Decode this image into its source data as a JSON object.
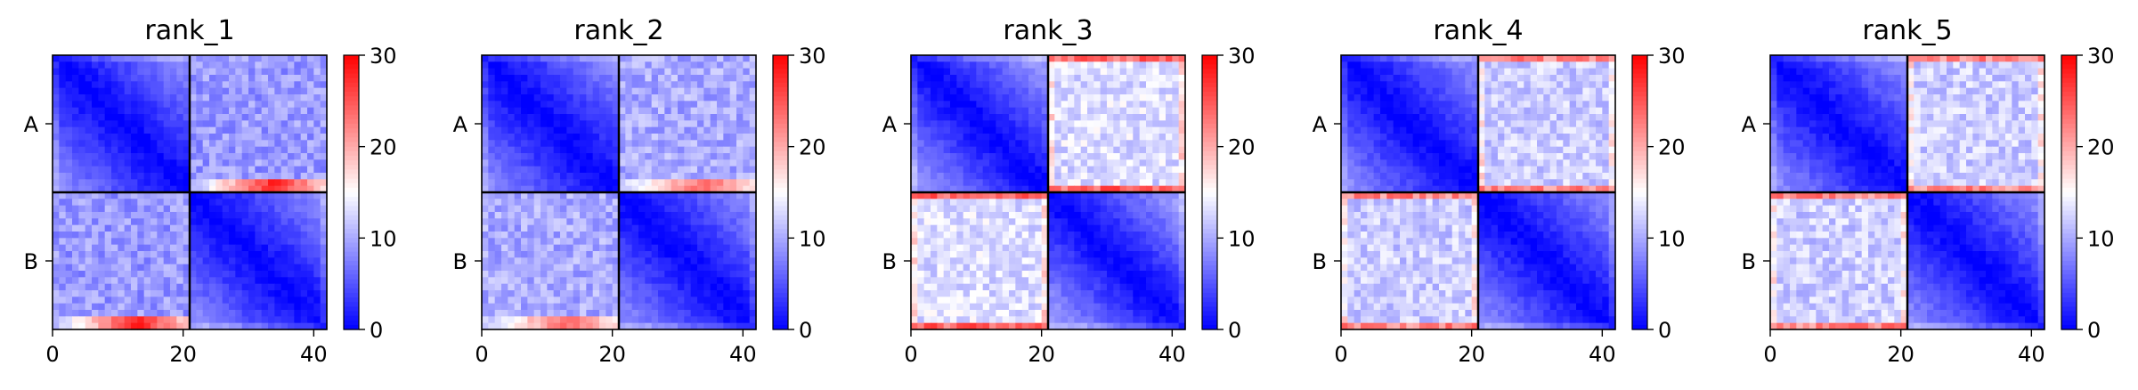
{
  "chart_data": [
    {
      "type": "heatmap",
      "title": "rank_1",
      "xticks": [
        0,
        20,
        40
      ],
      "yticklabels": [
        "A",
        "B"
      ],
      "xlim": [
        0,
        42
      ],
      "chain_boundary": 21,
      "colorbar": {
        "ticks": [
          0,
          10,
          20,
          30
        ],
        "range": [
          0,
          30
        ],
        "colormap": "bwr"
      },
      "offdiag_pattern": "edge-high",
      "approx_values": {
        "diagonal": 0,
        "intra_chain_far": 8,
        "inter_chain_typical": 9,
        "hot_edges": 28
      }
    },
    {
      "type": "heatmap",
      "title": "rank_2",
      "xticks": [
        0,
        20,
        40
      ],
      "yticklabels": [
        "A",
        "B"
      ],
      "xlim": [
        0,
        42
      ],
      "chain_boundary": 21,
      "colorbar": {
        "ticks": [
          0,
          10,
          20,
          30
        ],
        "range": [
          0,
          30
        ],
        "colormap": "bwr"
      },
      "offdiag_pattern": "edge-high",
      "approx_values": {
        "diagonal": 0,
        "intra_chain_far": 8,
        "inter_chain_typical": 10,
        "hot_edges": 24
      }
    },
    {
      "type": "heatmap",
      "title": "rank_3",
      "xticks": [
        0,
        20,
        40
      ],
      "yticklabels": [
        "A",
        "B"
      ],
      "xlim": [
        0,
        42
      ],
      "chain_boundary": 21,
      "colorbar": {
        "ticks": [
          0,
          10,
          20,
          30
        ],
        "range": [
          0,
          30
        ],
        "colormap": "bwr"
      },
      "offdiag_pattern": "uniform-high",
      "approx_values": {
        "diagonal": 0,
        "intra_chain_far": 9,
        "inter_chain_typical": 13,
        "hot_edges": 26
      }
    },
    {
      "type": "heatmap",
      "title": "rank_4",
      "xticks": [
        0,
        20,
        40
      ],
      "yticklabels": [
        "A",
        "B"
      ],
      "xlim": [
        0,
        42
      ],
      "chain_boundary": 21,
      "colorbar": {
        "ticks": [
          0,
          10,
          20,
          30
        ],
        "range": [
          0,
          30
        ],
        "colormap": "bwr"
      },
      "offdiag_pattern": "uniform-high",
      "approx_values": {
        "diagonal": 0,
        "intra_chain_far": 8,
        "inter_chain_typical": 12,
        "hot_edges": 24
      }
    },
    {
      "type": "heatmap",
      "title": "rank_5",
      "xticks": [
        0,
        20,
        40
      ],
      "yticklabels": [
        "A",
        "B"
      ],
      "xlim": [
        0,
        42
      ],
      "chain_boundary": 21,
      "colorbar": {
        "ticks": [
          0,
          10,
          20,
          30
        ],
        "range": [
          0,
          30
        ],
        "colormap": "bwr"
      },
      "offdiag_pattern": "uniform-high",
      "approx_values": {
        "diagonal": 0,
        "intra_chain_far": 8,
        "inter_chain_typical": 12,
        "hot_edges": 24
      }
    }
  ],
  "colors": {
    "low": "#0000ff",
    "mid": "#ffffff",
    "high": "#ff0000",
    "axis": "#000000"
  }
}
